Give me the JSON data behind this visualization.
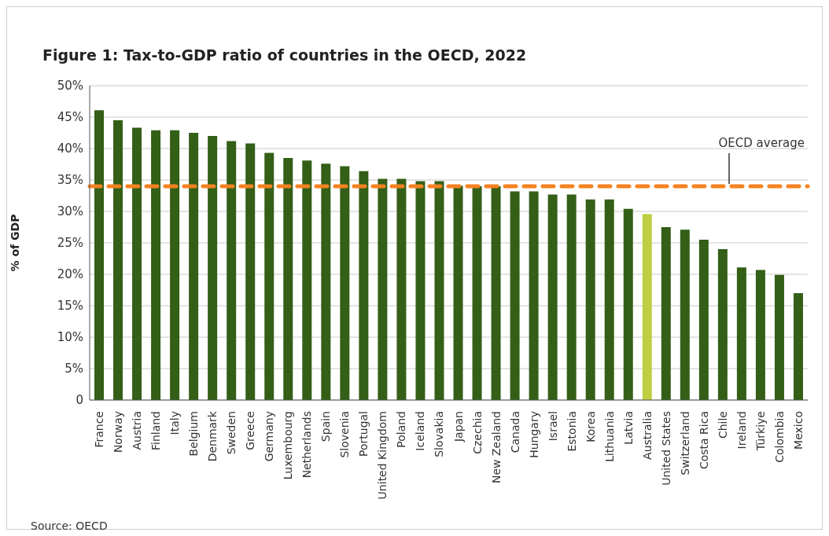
{
  "chart_data": {
    "type": "bar",
    "title": "Figure 1: Tax-to-GDP ratio of countries in the OECD, 2022",
    "ylabel": "% of GDP",
    "categories": [
      "France",
      "Norway",
      "Austria",
      "Finland",
      "Italy",
      "Belgium",
      "Denmark",
      "Sweden",
      "Greece",
      "Germany",
      "Luxembourg",
      "Netherlands",
      "Spain",
      "Slovenia",
      "Portugal",
      "United Kingdom",
      "Poland",
      "Iceland",
      "Slovakia",
      "Japan",
      "Czechia",
      "New Zealand",
      "Canada",
      "Hungary",
      "Israel",
      "Estonia",
      "Korea",
      "Lithuania",
      "Latvia",
      "Australia",
      "United States",
      "Switzerland",
      "Costa Rica",
      "Chile",
      "Ireland",
      "Türkiye",
      "Colombia",
      "Mexico"
    ],
    "values": [
      46.1,
      44.5,
      43.3,
      42.9,
      42.9,
      42.5,
      42.0,
      41.2,
      40.8,
      39.3,
      38.5,
      38.1,
      37.6,
      37.2,
      36.4,
      35.2,
      35.2,
      34.8,
      34.8,
      34.1,
      34.0,
      34.0,
      33.2,
      33.2,
      32.7,
      32.7,
      31.9,
      31.9,
      30.4,
      29.6,
      27.5,
      27.1,
      25.5,
      24.0,
      21.1,
      20.7,
      19.9,
      17.0
    ],
    "colors": [
      "#335f17",
      "#335f17",
      "#335f17",
      "#335f17",
      "#335f17",
      "#335f17",
      "#335f17",
      "#335f17",
      "#335f17",
      "#335f17",
      "#335f17",
      "#335f17",
      "#335f17",
      "#335f17",
      "#335f17",
      "#335f17",
      "#335f17",
      "#335f17",
      "#335f17",
      "#335f17",
      "#335f17",
      "#335f17",
      "#335f17",
      "#335f17",
      "#335f17",
      "#335f17",
      "#335f17",
      "#335f17",
      "#335f17",
      "#c0cf42",
      "#335f17",
      "#335f17",
      "#335f17",
      "#335f17",
      "#335f17",
      "#335f17",
      "#335f17",
      "#335f17"
    ],
    "ylim": [
      0,
      50
    ],
    "yticks": [
      {
        "value": 0,
        "label": "0"
      },
      {
        "value": 5,
        "label": "5%"
      },
      {
        "value": 10,
        "label": "10%"
      },
      {
        "value": 15,
        "label": "15%"
      },
      {
        "value": 20,
        "label": "20%"
      },
      {
        "value": 25,
        "label": "25%"
      },
      {
        "value": 30,
        "label": "30%"
      },
      {
        "value": 35,
        "label": "35%"
      },
      {
        "value": 40,
        "label": "40%"
      },
      {
        "value": 45,
        "label": "45%"
      },
      {
        "value": 50,
        "label": "50%"
      }
    ],
    "ref_lines": [
      {
        "axis": "y",
        "value": 34.0,
        "label": "OECD average",
        "color": "#f58220",
        "line_style": "dashed"
      }
    ],
    "grid": "y",
    "annotations": [
      "Source: OECD"
    ]
  }
}
